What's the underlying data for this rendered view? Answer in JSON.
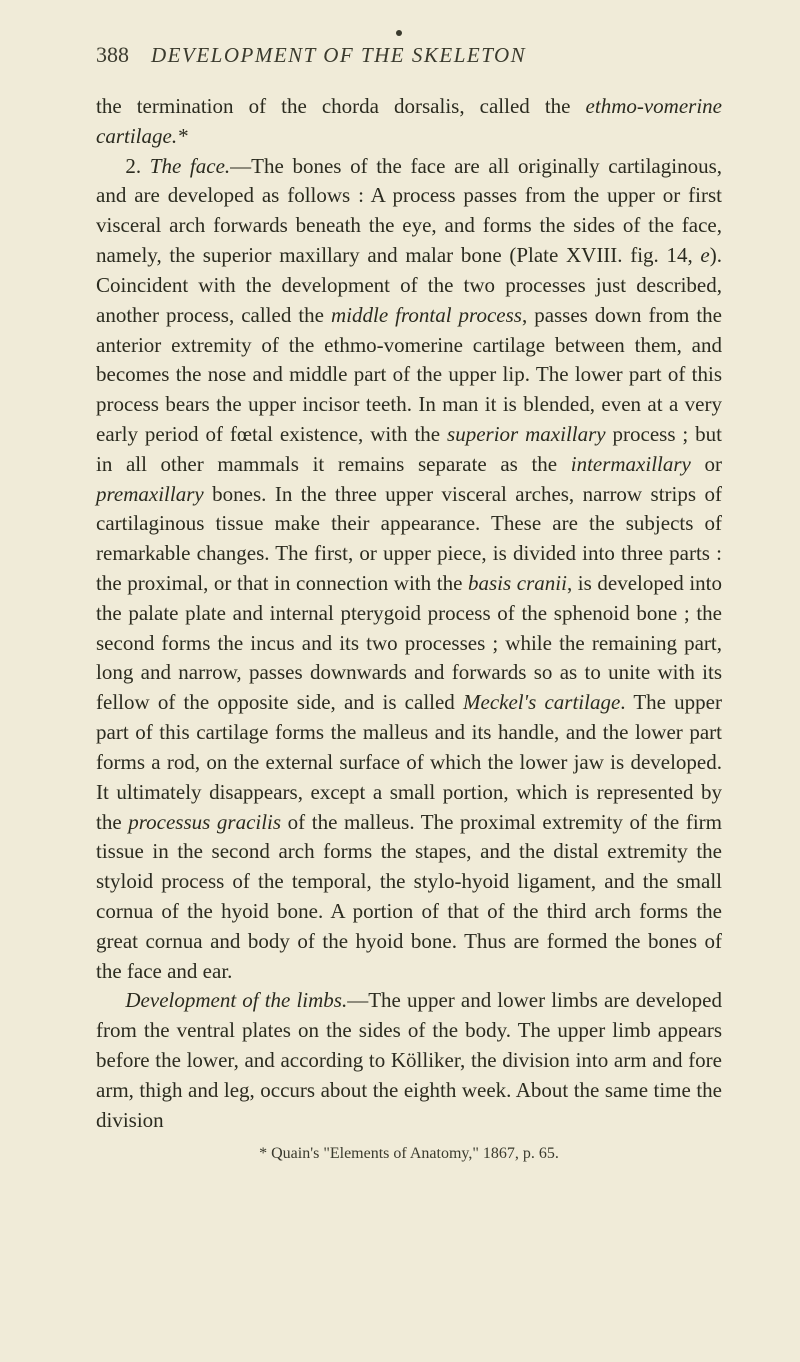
{
  "page_number": "388",
  "running_title": "DEVELOPMENT OF THE SKELETON",
  "para1_html": "the termination of the chorda dorsalis, called the <em class='i'>ethmo-vomerine cartilage.*</em>",
  "para2_html": "2. <em class='i'>The face.</em>—The bones of the face are all originally cartilaginous, and are developed as follows : A process passes from the upper or first visceral arch forwards beneath the eye, and forms the sides of the face, namely, the superior maxillary and malar bone (Plate XVIII. fig. 14, <em class='i'>e</em>). Coincident with the development of the two processes just described, another process, called the <em class='i'>middle frontal process</em>, passes down from the anterior extremity of the ethmo-vomerine cartilage between them, and becomes the nose and middle part of the upper lip. The lower part of this process bears the upper incisor teeth. In man it is blended, even at a very early period of fœtal existence, with the <em class='i'>superior maxillary</em> process ; but in all other mammals it remains separate as the <em class='i'>intermaxillary</em> or <em class='i'>premaxillary</em> bones. In the three upper visceral arches, narrow strips of cartilaginous tissue make their appearance. These are the subjects of remarkable changes. The first, or upper piece, is divided into three parts : the proximal, or that in connection with the <em class='i'>basis cranii</em>, is developed into the palate plate and internal pterygoid process of the sphenoid bone ; the second forms the incus and its two processes ; while the remaining part, long and narrow, passes downwards and forwards so as to unite with its fellow of the opposite side, and is called <em class='i'>Meckel's cartilage</em>. The upper part of this cartilage forms the malleus and its handle, and the lower part forms a rod, on the external surface of which the lower jaw is developed. It ultimately disappears, except a small portion, which is represented by the <em class='i'>processus gracilis</em> of the malleus. The proximal extremity of the firm tissue in the second arch forms the stapes, and the distal extremity the styloid process of the temporal, the stylo-hyoid ligament, and the small cornua of the hyoid bone. A portion of that of the third arch forms the great cornua and body of the hyoid bone. Thus are formed the bones of the face and ear.",
  "para3_html": "<em class='i'>Development of the limbs.</em>—The upper and lower limbs are developed from the ventral plates on the sides of the body. The upper limb appears before the lower, and according to Kölliker, the division into arm and fore arm, thigh and leg, occurs about the eighth week. About the same time the division",
  "footnote": "* Quain's \"Elements of Anatomy,\" 1867, p. 65."
}
